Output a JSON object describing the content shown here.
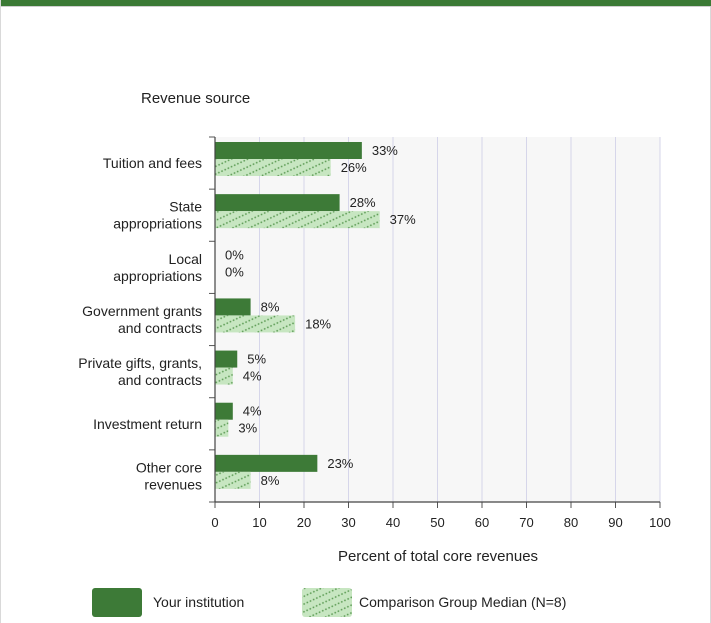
{
  "chart_data": {
    "type": "bar",
    "orientation": "horizontal",
    "title": "Revenue source",
    "xlabel": "Percent of total core revenues",
    "xlim": [
      0,
      100
    ],
    "xticks": [
      0,
      10,
      20,
      30,
      40,
      50,
      60,
      70,
      80,
      90,
      100
    ],
    "grid": true,
    "legend_position": "bottom",
    "categories": [
      [
        "Tuition and fees"
      ],
      [
        "State",
        "appropriations"
      ],
      [
        "Local",
        "appropriations"
      ],
      [
        "Government grants",
        "and contracts"
      ],
      [
        "Private gifts, grants,",
        "and contracts"
      ],
      [
        "Investment return"
      ],
      [
        "Other core",
        "revenues"
      ]
    ],
    "series": [
      {
        "name": "Your institution",
        "values": [
          33,
          28,
          0,
          8,
          5,
          4,
          23
        ],
        "color": "#3d7a37",
        "pattern": "solid"
      },
      {
        "name": "Comparison Group Median (N=8)",
        "values": [
          26,
          37,
          0,
          18,
          4,
          3,
          8
        ],
        "color": "#c7e6c1",
        "pattern": "dotted-diagonal"
      }
    ],
    "value_suffix": "%"
  }
}
